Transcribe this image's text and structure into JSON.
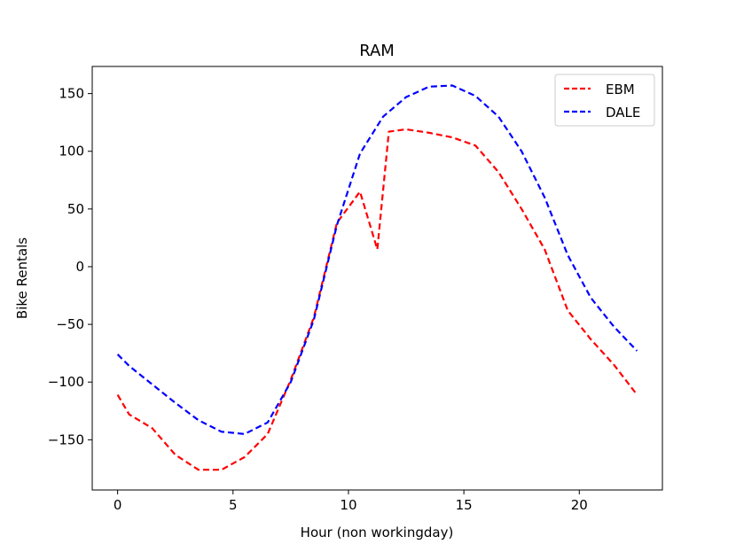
{
  "chart_data": {
    "type": "line",
    "title": "RAM",
    "xlabel": "Hour (non workingday)",
    "ylabel": "Bike Rentals",
    "xlim": [
      -1.1,
      23.6
    ],
    "ylim": [
      -193.5,
      173.5
    ],
    "xticks": [
      0,
      5,
      10,
      15,
      20
    ],
    "xtick_labels": [
      "0",
      "5",
      "10",
      "15",
      "20"
    ],
    "yticks": [
      -150,
      -100,
      -50,
      0,
      50,
      100,
      150
    ],
    "ytick_labels": [
      "−150",
      "−100",
      "−50",
      "0",
      "50",
      "100",
      "150"
    ],
    "legend_position": "top-right",
    "grid": false,
    "series": [
      {
        "name": "EBM",
        "color": "#ff0000",
        "linestyle": "dashed",
        "x": [
          0,
          0.5,
          1.5,
          2.5,
          3.5,
          4.5,
          5.5,
          6.5,
          7.5,
          8.5,
          9.5,
          10.5,
          11.25,
          11.75,
          12.5,
          13.5,
          14.5,
          15.5,
          16.5,
          17.5,
          18.5,
          19.5,
          20.5,
          21.5,
          22.5
        ],
        "y": [
          -111,
          -128,
          -140,
          -163,
          -176,
          -176,
          -165,
          -145,
          -98,
          -44,
          38,
          65,
          15,
          117,
          119,
          116,
          112,
          105,
          82,
          50,
          15,
          -38,
          -63,
          -85,
          -111
        ]
      },
      {
        "name": "DALE",
        "color": "#0000ff",
        "linestyle": "dashed",
        "x": [
          0,
          0.5,
          1.5,
          2.5,
          3.5,
          4.5,
          5.5,
          6.5,
          7.5,
          8.5,
          9.5,
          10.5,
          11.5,
          12.5,
          13.5,
          14.5,
          15.5,
          16.5,
          17.5,
          18.5,
          19.5,
          20.5,
          21.5,
          22.5
        ],
        "y": [
          -76,
          -86,
          -102,
          -118,
          -133,
          -143,
          -145,
          -135,
          -100,
          -46,
          36,
          98,
          130,
          147,
          156,
          157,
          148,
          130,
          100,
          60,
          10,
          -27,
          -52,
          -73
        ]
      }
    ]
  }
}
